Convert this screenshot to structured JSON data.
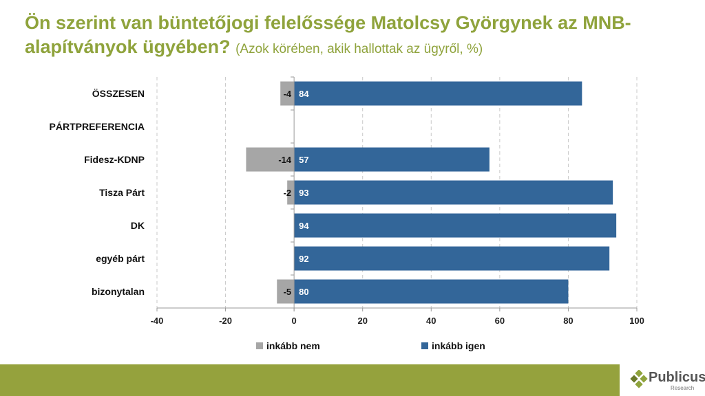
{
  "chart_data": {
    "type": "bar",
    "orientation": "horizontal",
    "stacked": "diverging",
    "title": "Ön szerint van büntetőjogi felelőssége Matolcsy Györgynek az MNB-alapítványok ügyében?",
    "subtitle": "(Azok körében, akik hallottak az ügyről, %)",
    "categories": [
      "ÖSSZESEN",
      "PÁRTPREFERENCIA",
      "Fidesz-KDNP",
      "Tisza Párt",
      "DK",
      "egyéb párt",
      "bizonytalan"
    ],
    "series": [
      {
        "name": "inkább nem",
        "color": "#a6a6a6",
        "values": [
          -4,
          null,
          -14,
          -2,
          null,
          null,
          -5
        ]
      },
      {
        "name": "inkább igen",
        "color": "#336699",
        "values": [
          84,
          null,
          57,
          93,
          94,
          92,
          80
        ]
      }
    ],
    "xlim": [
      -40,
      100
    ],
    "xticks": [
      -40,
      -20,
      0,
      20,
      40,
      60,
      80,
      100
    ],
    "xtick_labels": [
      "-40",
      "-20",
      "0",
      "20",
      "40",
      "60",
      "80",
      "100"
    ],
    "grid": "vertical dashed",
    "legend": "bottom"
  },
  "logo": {
    "name": "Publicus",
    "sub": "Research"
  },
  "colors": {
    "title": "#8fa33c",
    "footer": "#95a23d"
  }
}
